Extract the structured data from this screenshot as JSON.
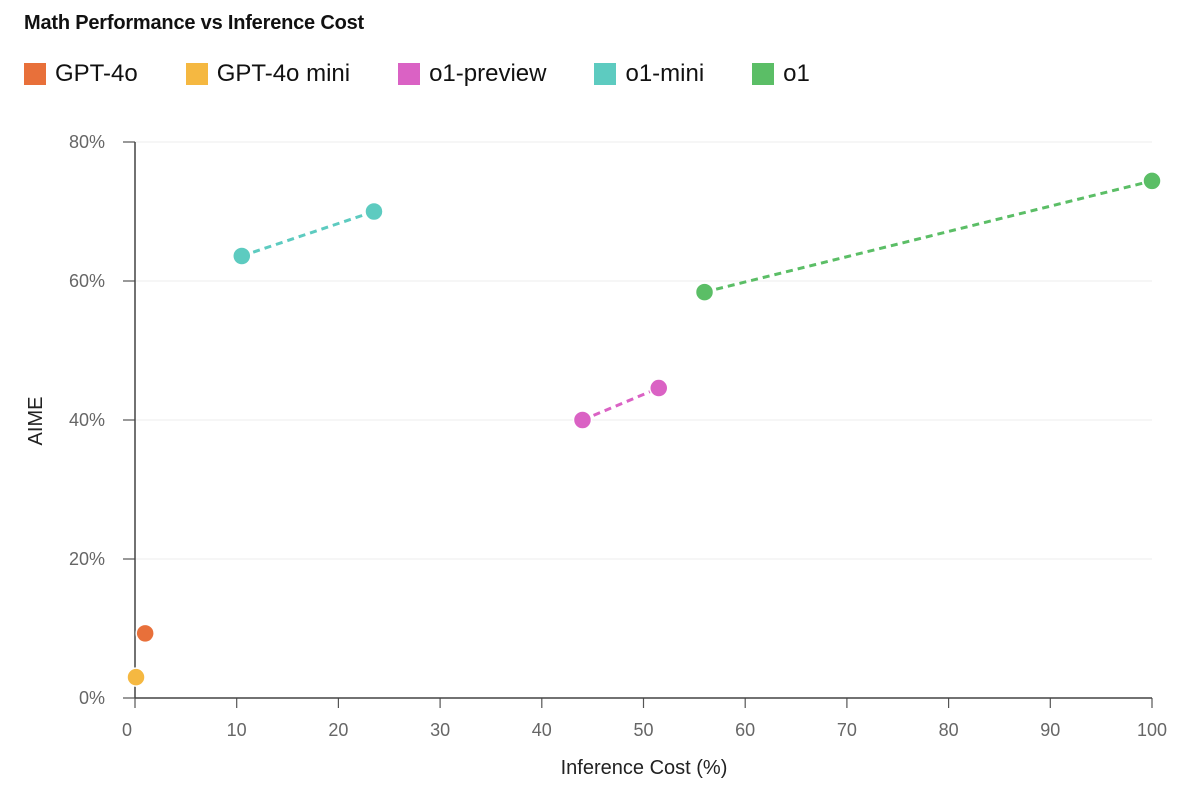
{
  "chart_data": {
    "type": "scatter",
    "title": "Math Performance vs Inference Cost",
    "xlabel": "Inference Cost (%)",
    "ylabel": "AIME",
    "xlim": [
      0,
      100
    ],
    "ylim": [
      0,
      80
    ],
    "x_ticks": [
      "0",
      "10",
      "20",
      "30",
      "40",
      "50",
      "60",
      "70",
      "80",
      "90",
      "100"
    ],
    "y_ticks": [
      "0%",
      "20%",
      "40%",
      "60%",
      "80%"
    ],
    "grid": "horizontal",
    "legend_position": "top-left",
    "series": [
      {
        "name": "GPT-4o",
        "color": "#E8703A",
        "points": [
          [
            1.0,
            9.3
          ]
        ]
      },
      {
        "name": "GPT-4o mini",
        "color": "#F5B841",
        "points": [
          [
            0.1,
            3.0
          ]
        ]
      },
      {
        "name": "o1-preview",
        "color": "#DA62C4",
        "connected": true,
        "points": [
          [
            44.0,
            40.0
          ],
          [
            51.5,
            44.6
          ]
        ]
      },
      {
        "name": "o1-mini",
        "color": "#5DCBC0",
        "connected": true,
        "points": [
          [
            10.5,
            63.6
          ],
          [
            23.5,
            70.0
          ]
        ]
      },
      {
        "name": "o1",
        "color": "#5BBE66",
        "connected": true,
        "points": [
          [
            56.0,
            58.4
          ],
          [
            100.0,
            74.4
          ]
        ]
      }
    ]
  }
}
